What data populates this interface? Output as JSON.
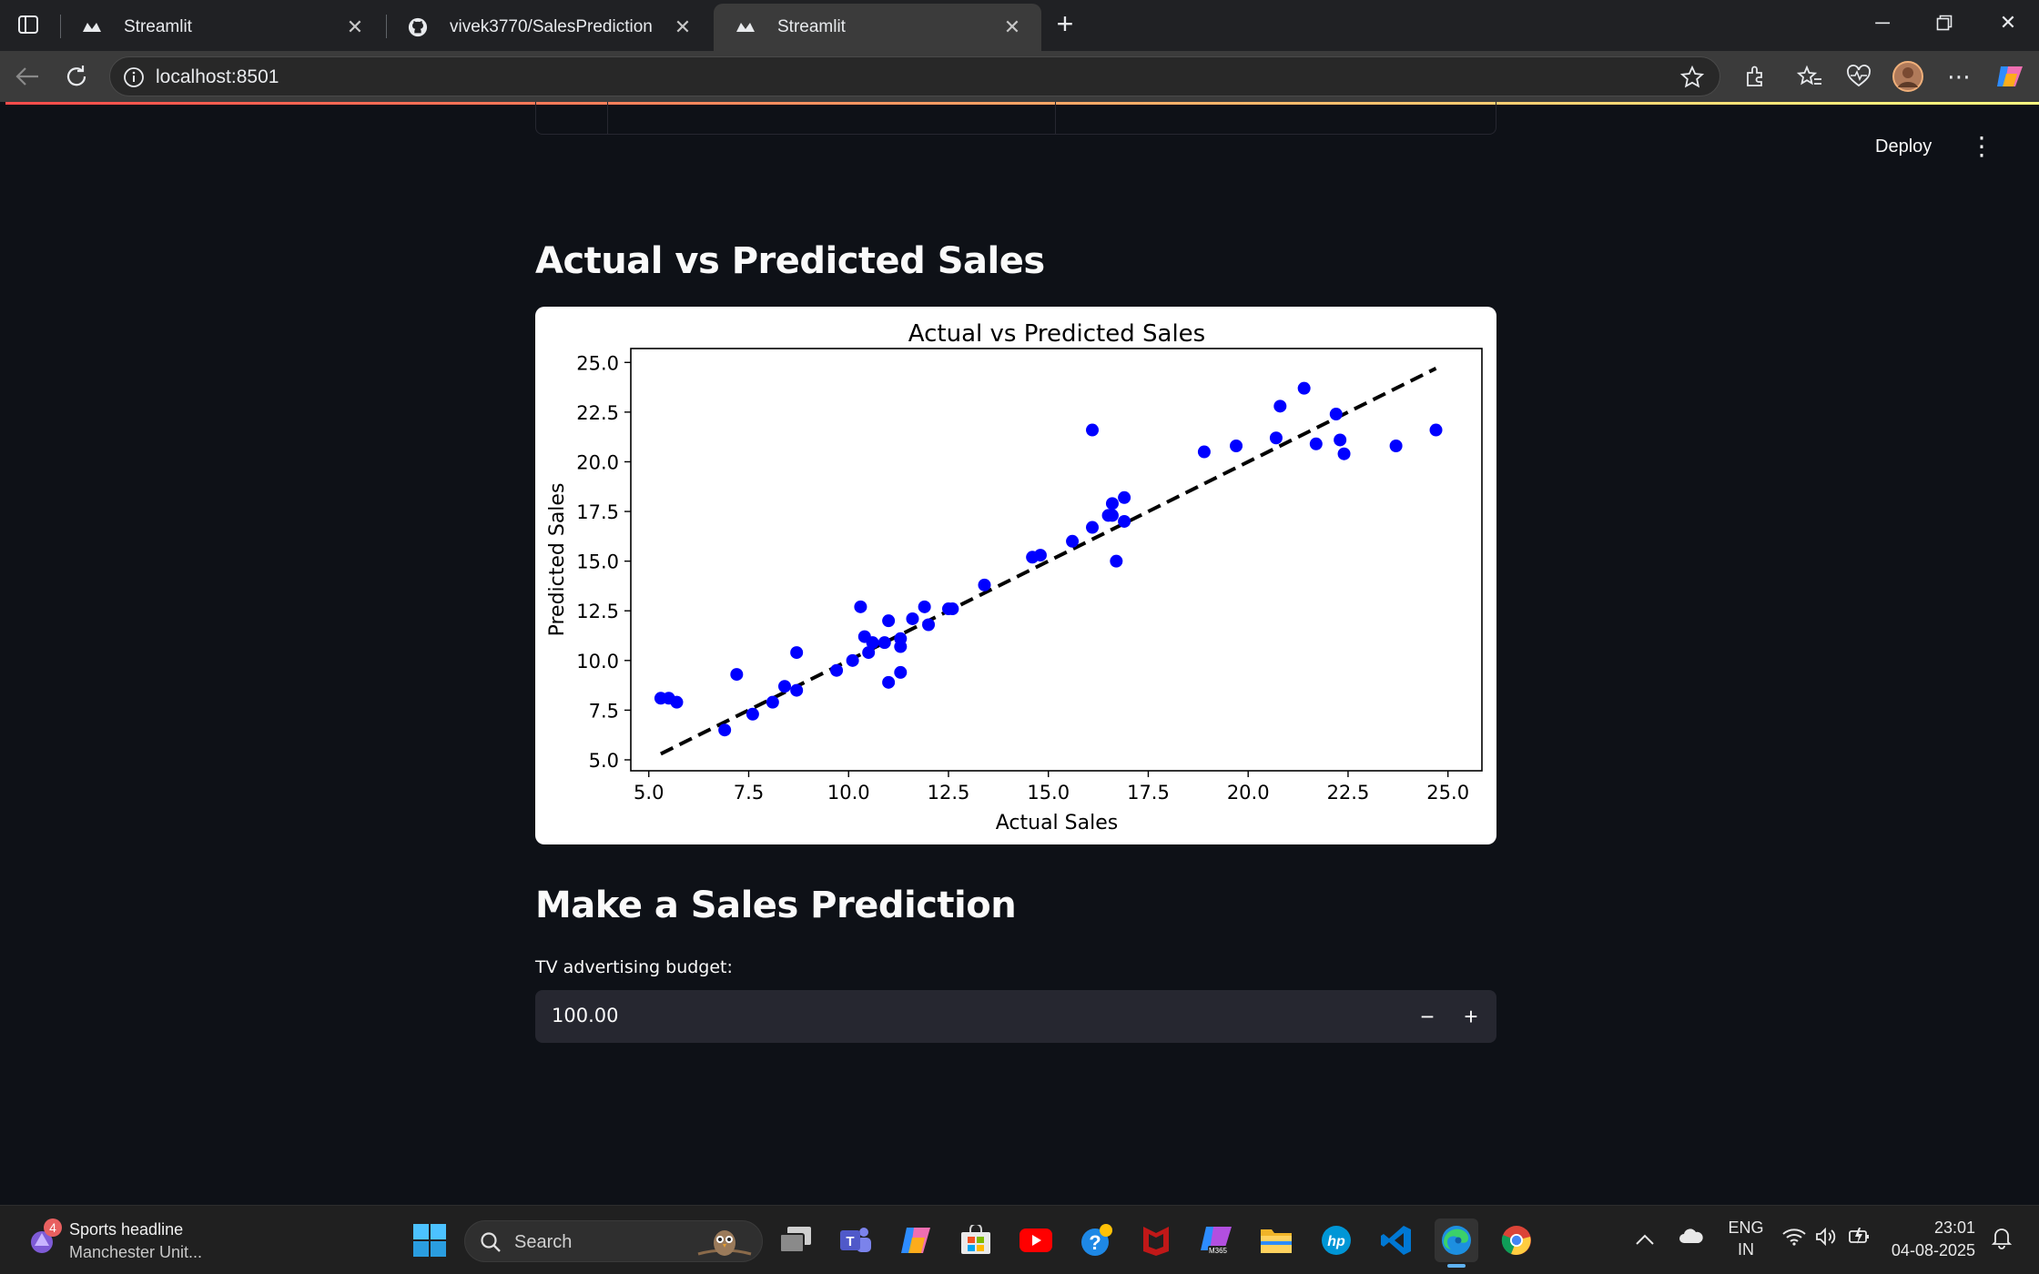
{
  "browser": {
    "tabs": [
      {
        "title": "Streamlit"
      },
      {
        "title": "vivek3770/SalesPrediction"
      },
      {
        "title": "Streamlit"
      }
    ],
    "url": "localhost:8501"
  },
  "app": {
    "deploy_label": "Deploy",
    "chart_section_title": "Actual vs Predicted Sales",
    "prediction_section_title": "Make a Sales Prediction",
    "tv_input": {
      "label": "TV advertising budget:",
      "value": "100.00",
      "minus": "−",
      "plus": "+"
    }
  },
  "chart_data": {
    "type": "scatter",
    "title": "Actual vs Predicted Sales",
    "xlabel": "Actual Sales",
    "ylabel": "Predicted Sales",
    "xlim": [
      4.55,
      25.85
    ],
    "ylim": [
      4.45,
      25.7
    ],
    "xticks": [
      "5.0",
      "7.5",
      "10.0",
      "12.5",
      "15.0",
      "17.5",
      "20.0",
      "22.5",
      "25.0"
    ],
    "yticks": [
      "5.0",
      "7.5",
      "10.0",
      "12.5",
      "15.0",
      "17.5",
      "20.0",
      "22.5",
      "25.0"
    ],
    "point_color": "#0000ff",
    "line_color": "#000000",
    "line_style": "dashed",
    "line_range": [
      5.3,
      24.7
    ],
    "grid": false,
    "points": [
      [
        5.3,
        8.1
      ],
      [
        5.5,
        8.1
      ],
      [
        5.7,
        7.9
      ],
      [
        6.9,
        6.5
      ],
      [
        7.2,
        9.3
      ],
      [
        7.6,
        7.3
      ],
      [
        8.1,
        7.9
      ],
      [
        8.4,
        8.7
      ],
      [
        8.7,
        10.4
      ],
      [
        8.7,
        8.5
      ],
      [
        9.7,
        9.5
      ],
      [
        10.1,
        10.0
      ],
      [
        10.3,
        12.7
      ],
      [
        10.4,
        11.2
      ],
      [
        10.5,
        10.4
      ],
      [
        10.6,
        10.9
      ],
      [
        10.9,
        10.9
      ],
      [
        11.0,
        8.9
      ],
      [
        11.0,
        12.0
      ],
      [
        11.3,
        9.4
      ],
      [
        11.3,
        10.7
      ],
      [
        11.3,
        11.1
      ],
      [
        11.6,
        12.1
      ],
      [
        11.9,
        12.7
      ],
      [
        12.0,
        11.8
      ],
      [
        12.5,
        12.6
      ],
      [
        12.6,
        12.6
      ],
      [
        13.4,
        13.8
      ],
      [
        14.6,
        15.2
      ],
      [
        14.8,
        15.3
      ],
      [
        15.6,
        16.0
      ],
      [
        16.1,
        16.7
      ],
      [
        16.1,
        21.6
      ],
      [
        16.5,
        17.3
      ],
      [
        16.6,
        17.9
      ],
      [
        16.6,
        17.3
      ],
      [
        16.7,
        15.0
      ],
      [
        16.9,
        18.2
      ],
      [
        16.9,
        17.0
      ],
      [
        18.9,
        20.5
      ],
      [
        19.7,
        20.8
      ],
      [
        20.7,
        21.2
      ],
      [
        20.8,
        22.8
      ],
      [
        21.4,
        23.7
      ],
      [
        21.7,
        20.9
      ],
      [
        22.2,
        22.4
      ],
      [
        22.3,
        21.1
      ],
      [
        22.4,
        20.4
      ],
      [
        23.7,
        20.8
      ],
      [
        24.7,
        21.6
      ]
    ]
  },
  "taskbar": {
    "news_headline": "Sports headline",
    "news_sub": "Manchester Unit...",
    "news_badge": "4",
    "search_placeholder": "Search",
    "lang_top": "ENG",
    "lang_bottom": "IN",
    "time": "23:01",
    "date": "04-08-2025"
  }
}
